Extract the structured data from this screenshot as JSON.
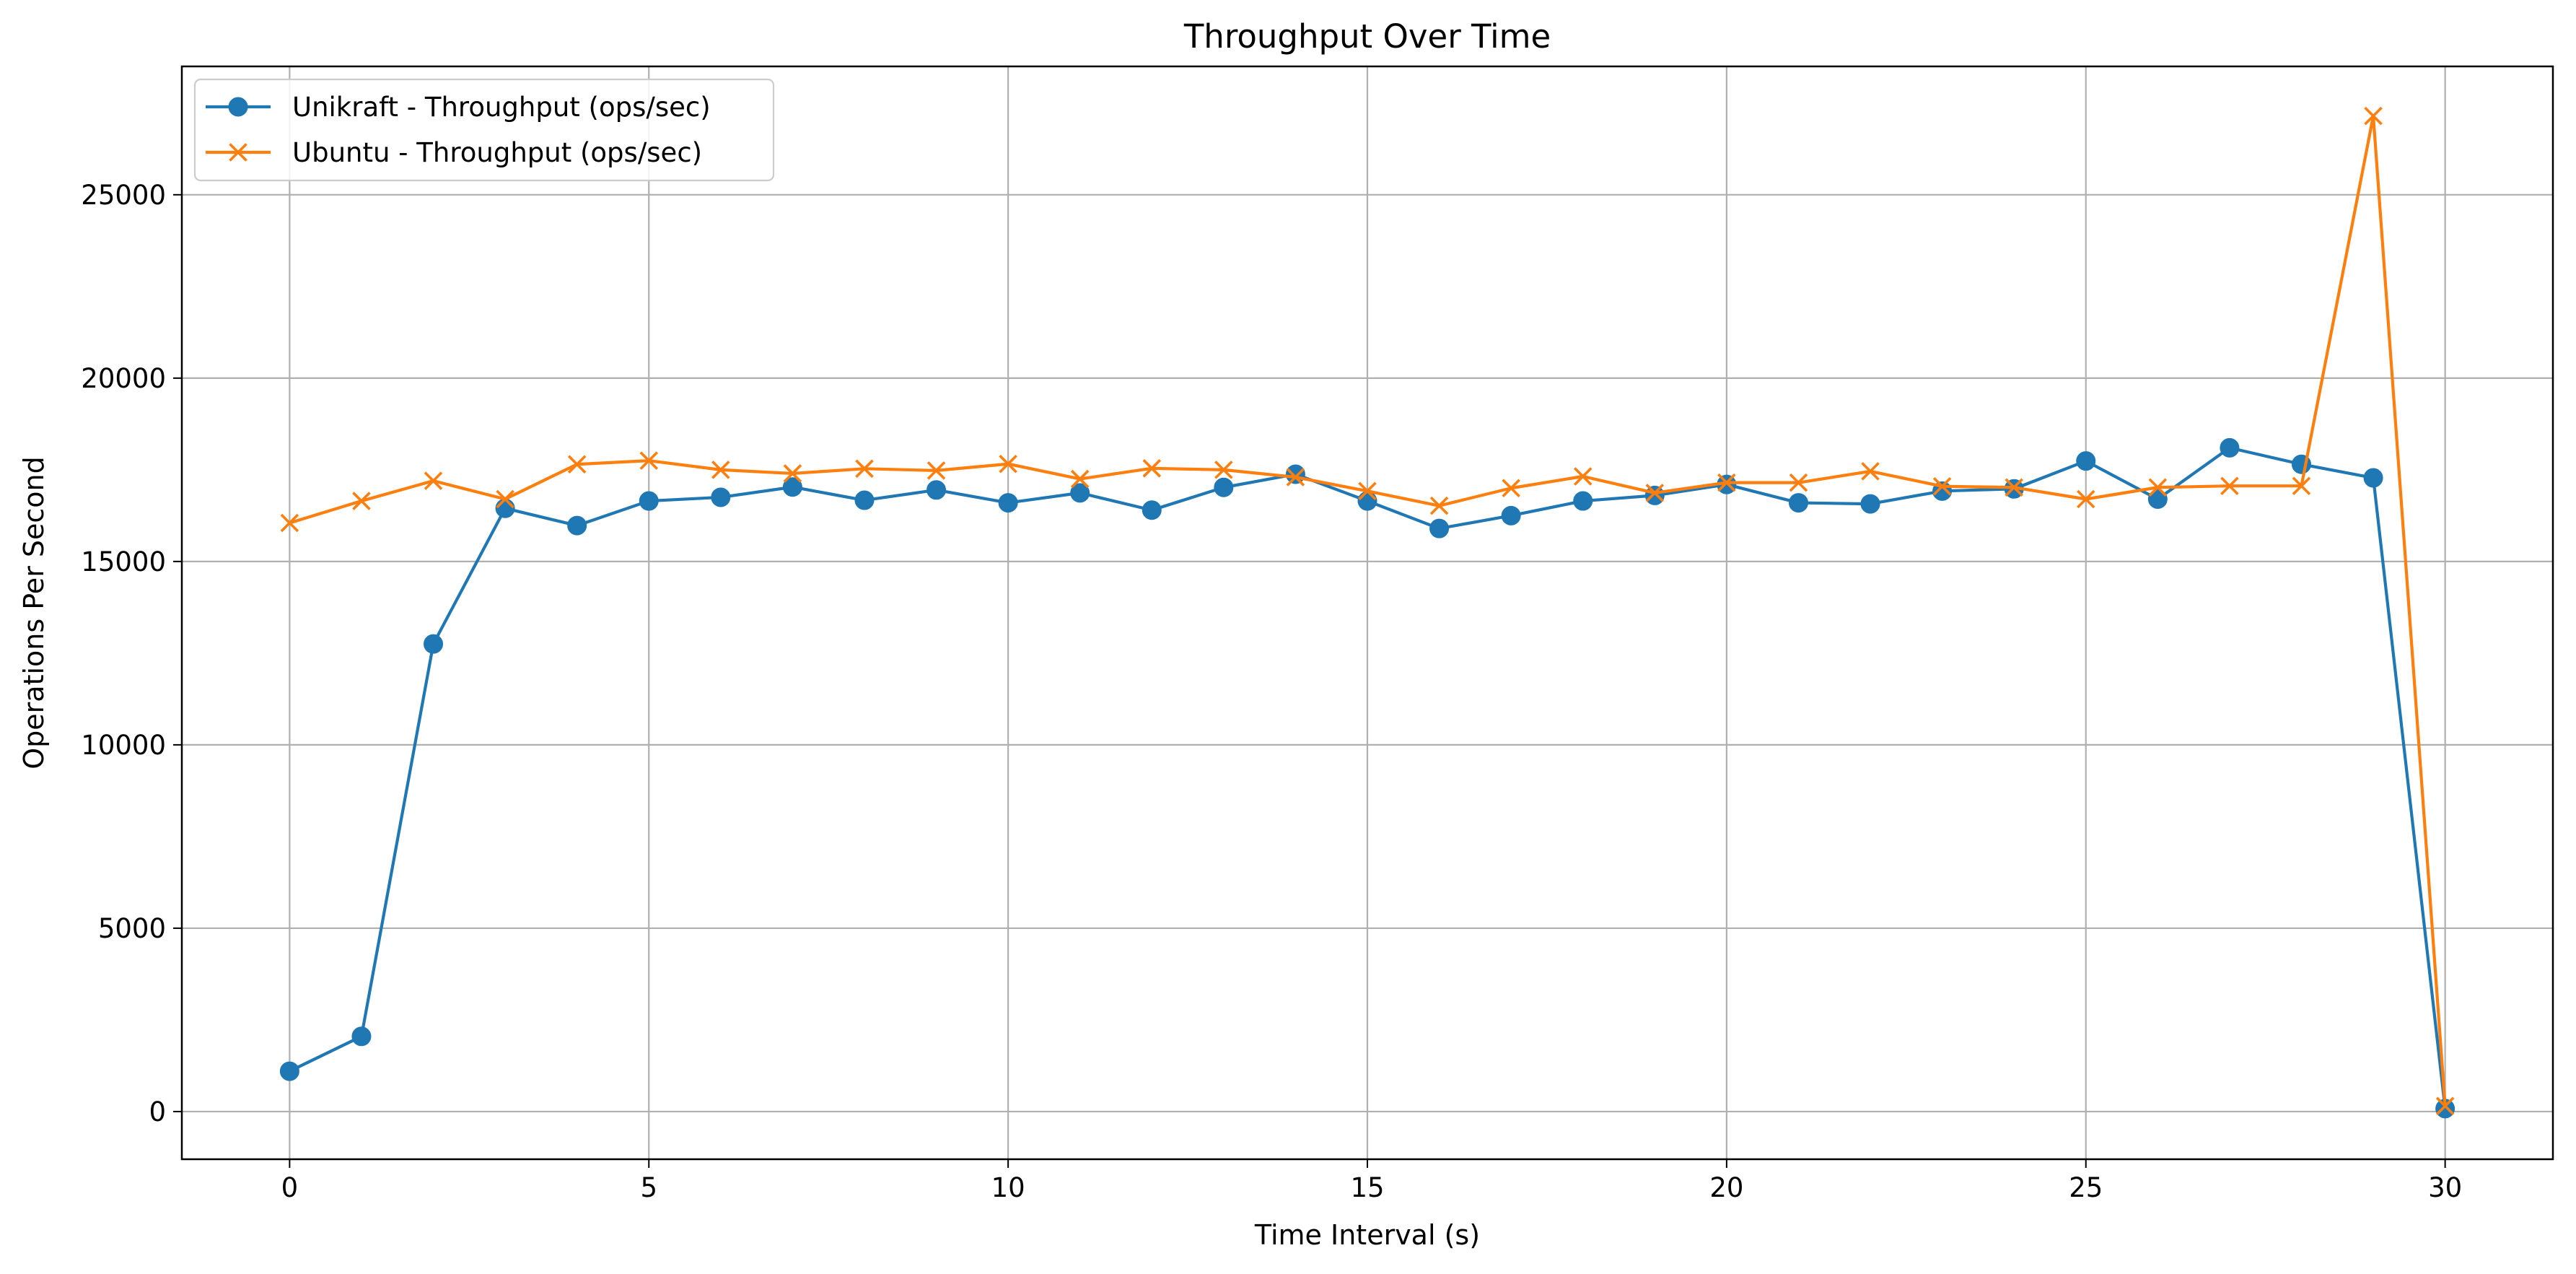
{
  "chart_data": {
    "type": "line",
    "title": "Throughput Over Time",
    "xlabel": "Time Interval (s)",
    "ylabel": "Operations Per Second",
    "xlim": [
      -1.5,
      31.5
    ],
    "ylim": [
      -1300,
      28500
    ],
    "xticks": [
      0,
      5,
      10,
      15,
      20,
      25,
      30
    ],
    "yticks": [
      0,
      5000,
      10000,
      15000,
      20000,
      25000
    ],
    "grid": true,
    "legend_position": "upper-left",
    "x": [
      0,
      1,
      2,
      3,
      4,
      5,
      6,
      7,
      8,
      9,
      10,
      11,
      12,
      13,
      14,
      15,
      16,
      17,
      18,
      19,
      20,
      21,
      22,
      23,
      24,
      25,
      26,
      27,
      28,
      29,
      30
    ],
    "series": [
      {
        "name": "Unikraft - Throughput (ops/sec)",
        "color": "#1f77b4",
        "marker": "circle",
        "values": [
          1100,
          2050,
          12750,
          16450,
          15980,
          16650,
          16750,
          17030,
          16670,
          16950,
          16600,
          16870,
          16400,
          17020,
          17380,
          16650,
          15900,
          16250,
          16650,
          16800,
          17100,
          16600,
          16570,
          16920,
          16980,
          17740,
          16700,
          18100,
          17650,
          17280,
          80
        ]
      },
      {
        "name": "Ubuntu - Throughput (ops/sec)",
        "color": "#ff7f0e",
        "marker": "x",
        "values": [
          16050,
          16650,
          17200,
          16700,
          17650,
          17750,
          17500,
          17400,
          17530,
          17480,
          17660,
          17250,
          17540,
          17500,
          17300,
          16920,
          16520,
          17000,
          17320,
          16870,
          17150,
          17150,
          17460,
          17050,
          17020,
          16700,
          17020,
          17060,
          17060,
          27150,
          150
        ]
      }
    ]
  }
}
